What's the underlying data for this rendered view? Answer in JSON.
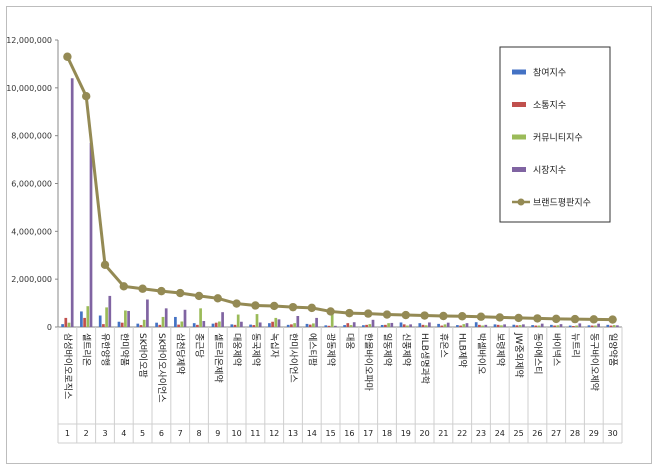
{
  "chart_data": {
    "type": "bar",
    "title": "",
    "xlabel": "",
    "ylabel": "",
    "ylim": [
      0,
      12000000
    ],
    "yticks": [
      "0",
      "2,000,000",
      "4,000,000",
      "6,000,000",
      "8,000,000",
      "10,000,000",
      "12,000,000"
    ],
    "grid": false,
    "legend_position": "top-right",
    "rank_labels": [
      "1",
      "2",
      "3",
      "4",
      "5",
      "6",
      "7",
      "8",
      "9",
      "10",
      "11",
      "12",
      "13",
      "14",
      "15",
      "16",
      "17",
      "18",
      "19",
      "20",
      "21",
      "22",
      "23",
      "24",
      "25",
      "26",
      "27",
      "28",
      "29",
      "30"
    ],
    "categories": [
      "삼성바이오로직스",
      "셀트리온",
      "유한양행",
      "한미약품",
      "SK바이오팜",
      "SK바이오사이언스",
      "삼천당제약",
      "종근당",
      "셀트리온제약",
      "대웅제약",
      "동국제약",
      "녹십자",
      "한미사이언스",
      "에스티팜",
      "광동제약",
      "대웅",
      "한올바이오파마",
      "일동제약",
      "신풍제약",
      "HLB생명과학",
      "휴온스",
      "HLB제약",
      "박셀바이오",
      "보령제약",
      "JW중외제약",
      "동아에스티",
      "바이넥스",
      "뉴트리",
      "동구바이오제약",
      "일양약품"
    ],
    "series": [
      {
        "name": "참여지수",
        "color": "#4472c4",
        "chart": "bar",
        "values": [
          120000,
          650000,
          480000,
          220000,
          140000,
          180000,
          420000,
          160000,
          140000,
          110000,
          100000,
          160000,
          90000,
          130000,
          70000,
          80000,
          75000,
          85000,
          190000,
          160000,
          130000,
          80000,
          200000,
          110000,
          95000,
          80000,
          90000,
          60000,
          70000,
          90000
        ]
      },
      {
        "name": "소통지수",
        "color": "#c0504d",
        "chart": "bar",
        "values": [
          380000,
          380000,
          120000,
          180000,
          80000,
          90000,
          100000,
          90000,
          180000,
          90000,
          80000,
          220000,
          110000,
          100000,
          50000,
          160000,
          90000,
          90000,
          110000,
          90000,
          60000,
          60000,
          90000,
          90000,
          70000,
          60000,
          60000,
          40000,
          60000,
          60000
        ]
      },
      {
        "name": "커뮤니티지수",
        "color": "#9bbb59",
        "chart": "bar",
        "values": [
          180000,
          870000,
          820000,
          690000,
          300000,
          420000,
          230000,
          780000,
          230000,
          520000,
          540000,
          380000,
          160000,
          150000,
          570000,
          80000,
          120000,
          160000,
          60000,
          70000,
          110000,
          120000,
          60000,
          70000,
          80000,
          60000,
          70000,
          60000,
          60000,
          80000
        ]
      },
      {
        "name": "시장지수",
        "color": "#8064a2",
        "chart": "bar",
        "values": [
          10400000,
          7700000,
          1300000,
          670000,
          1150000,
          780000,
          720000,
          250000,
          620000,
          220000,
          190000,
          320000,
          460000,
          380000,
          50000,
          200000,
          300000,
          170000,
          110000,
          190000,
          180000,
          160000,
          90000,
          110000,
          110000,
          140000,
          120000,
          150000,
          140000,
          70000
        ]
      },
      {
        "name": "브랜드평판지수",
        "color": "#948a54",
        "chart": "line",
        "values": [
          11300000,
          9650000,
          2600000,
          1700000,
          1600000,
          1500000,
          1420000,
          1300000,
          1200000,
          980000,
          900000,
          880000,
          830000,
          800000,
          650000,
          580000,
          560000,
          520000,
          500000,
          480000,
          460000,
          450000,
          430000,
          400000,
          380000,
          360000,
          340000,
          330000,
          320000,
          310000
        ]
      }
    ]
  }
}
